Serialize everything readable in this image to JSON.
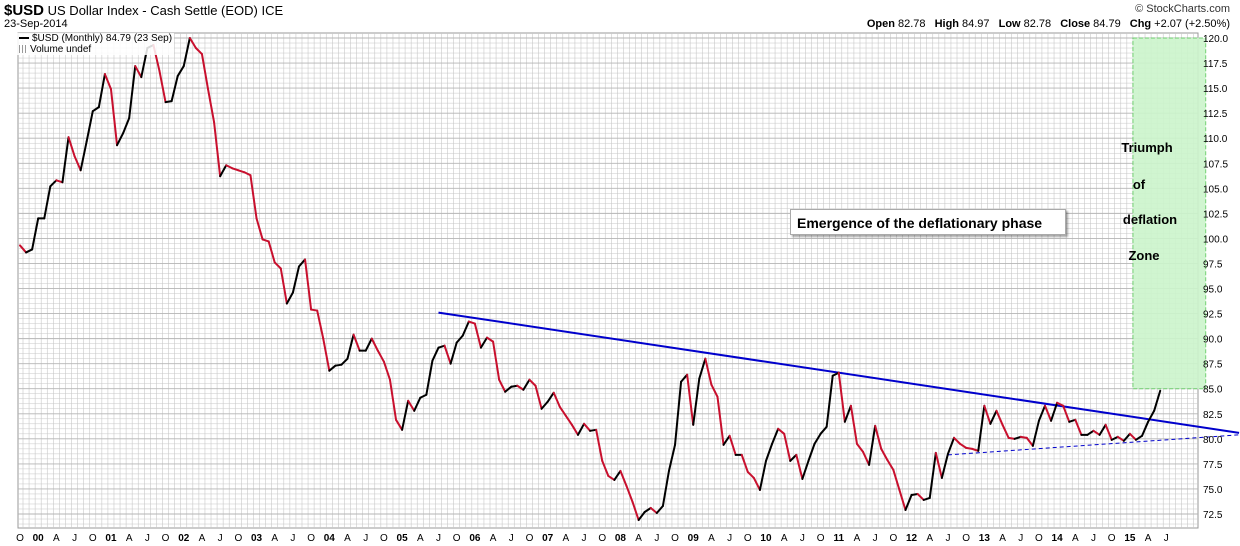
{
  "header": {
    "symbol": "$USD",
    "name": "US Dollar Index - Cash Settle (EOD)",
    "exchange": "ICE",
    "date": "23-Sep-2014",
    "copyright": "© StockCharts.com",
    "ohlc": {
      "open_label": "Open",
      "open": "82.78",
      "high_label": "High",
      "high": "84.97",
      "low_label": "Low",
      "low": "82.78",
      "close_label": "Close",
      "close": "84.79",
      "chg_label": "Chg",
      "chg": "+2.07 (+2.50%)"
    }
  },
  "legend": {
    "series": "$USD (Monthly) 84.79 (23 Sep)",
    "volume": "Volume undef"
  },
  "annotations": {
    "box": "Emergence of the deflationary phase",
    "zone_lines": [
      "Triumph",
      "of",
      "deflation",
      "Zone"
    ]
  },
  "colors": {
    "up": "#000000",
    "down": "#c8102e",
    "trendline": "#0000cc",
    "zone_fill": "#ccf5cc",
    "zone_border": "#66cc66",
    "grid": "#c8c8c8"
  },
  "chart_data": {
    "type": "line",
    "xlabel": "",
    "ylabel": "",
    "ylim": [
      71.5,
      120.5
    ],
    "y_ticks": [
      72.5,
      75.0,
      77.5,
      80.0,
      82.5,
      85.0,
      87.5,
      90.0,
      92.5,
      95.0,
      97.5,
      100.0,
      102.5,
      105.0,
      107.5,
      110.0,
      112.5,
      115.0,
      117.5,
      120.0
    ],
    "x_tick_labels": [
      "O",
      "00",
      "A",
      "J",
      "O",
      "01",
      "A",
      "J",
      "O",
      "02",
      "A",
      "J",
      "O",
      "03",
      "A",
      "J",
      "O",
      "04",
      "A",
      "J",
      "O",
      "05",
      "A",
      "J",
      "O",
      "06",
      "A",
      "J",
      "O",
      "07",
      "A",
      "J",
      "O",
      "08",
      "A",
      "J",
      "O",
      "09",
      "A",
      "J",
      "O",
      "10",
      "A",
      "J",
      "O",
      "11",
      "A",
      "J",
      "O",
      "12",
      "A",
      "J",
      "O",
      "13",
      "A",
      "J",
      "O",
      "14",
      "A",
      "J",
      "O",
      "15",
      "A",
      "J"
    ],
    "series": [
      {
        "values": [
          99.3,
          98.6,
          98.9,
          102.0,
          102.0,
          105.2,
          105.8,
          105.6,
          110.1,
          108.2,
          106.8,
          109.7,
          112.7,
          113.1,
          116.4,
          114.9,
          109.3,
          110.5,
          112.0,
          117.2,
          116.1,
          119.0,
          119.3,
          116.7,
          113.6,
          113.7,
          116.2,
          117.2,
          120.0,
          119.0,
          118.4,
          114.9,
          111.6,
          106.2,
          107.3,
          107.0,
          106.8,
          106.6,
          106.3,
          102.0,
          99.9,
          99.7,
          97.6,
          97.0,
          93.5,
          94.6,
          97.2,
          97.9,
          92.9,
          92.8,
          90.0,
          86.8,
          87.3,
          87.4,
          88.0,
          90.4,
          88.8,
          88.8,
          90.0,
          88.8,
          87.7,
          85.9,
          81.9,
          80.9,
          83.8,
          82.8,
          84.1,
          84.4,
          87.8,
          89.1,
          89.3,
          87.5,
          89.6,
          90.3,
          91.7,
          91.5,
          89.1,
          90.1,
          89.7,
          85.9,
          84.7,
          85.2,
          85.3,
          84.9,
          85.9,
          85.3,
          83.0,
          83.7,
          84.6,
          83.2,
          82.3,
          81.4,
          80.4,
          81.5,
          80.8,
          80.9,
          77.8,
          76.3,
          75.9,
          76.8,
          75.3,
          73.7,
          71.9,
          72.7,
          73.1,
          72.6,
          73.3,
          76.8,
          79.4,
          85.7,
          86.4,
          81.4,
          86.0,
          88.0,
          85.4,
          84.2,
          79.4,
          80.3,
          78.4,
          78.4,
          76.7,
          76.1,
          74.9,
          77.8,
          79.5,
          81.0,
          80.5,
          77.8,
          78.4,
          76.0,
          77.8,
          79.5,
          80.5,
          81.2,
          86.3,
          86.6,
          81.7,
          83.3,
          79.5,
          78.7,
          77.4,
          81.3,
          79.0,
          77.9,
          76.9,
          74.9,
          72.9,
          74.4,
          74.5,
          73.9,
          74.1,
          78.6,
          76.1,
          78.5,
          80.1,
          79.5,
          79.1,
          79.0,
          78.8,
          83.3,
          81.5,
          82.8,
          81.4,
          80.1,
          80.0,
          80.2,
          80.1,
          79.3,
          81.8,
          83.3,
          81.8,
          83.6,
          83.3,
          81.7,
          81.9,
          80.4,
          80.4,
          80.8,
          80.4,
          81.4,
          79.9,
          80.2,
          79.8,
          80.5,
          79.9,
          80.3,
          81.7,
          82.8,
          84.8
        ]
      }
    ],
    "trendlines": [
      {
        "style": "solid",
        "x": [
          69,
          201
        ],
        "y": [
          92.6,
          80.6
        ]
      },
      {
        "style": "dashed",
        "x": [
          153,
          201
        ],
        "y": [
          78.4,
          80.4
        ]
      }
    ],
    "zone": {
      "x": [
        183.5,
        195.5
      ],
      "y": [
        85.0,
        120.0
      ]
    },
    "grid": true,
    "legend_position": "top-left"
  }
}
